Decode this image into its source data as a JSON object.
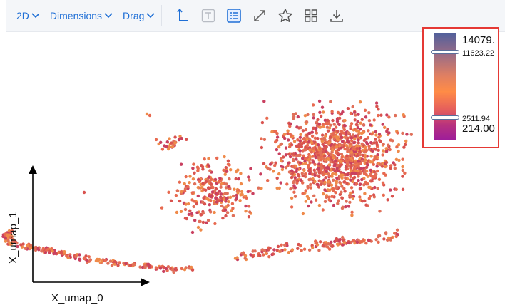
{
  "toolbar": {
    "view_mode": "2D",
    "dimensions_label": "Dimensions",
    "drag_label": "Drag",
    "accent": "#1f6fd6",
    "icons": [
      "axes-icon",
      "text-icon",
      "legend-list-icon",
      "expand-icon",
      "star-icon",
      "grid-icon",
      "download-icon"
    ]
  },
  "legend": {
    "max": "14079.",
    "upper_handle": "11623.22",
    "lower_handle": "2511.94",
    "min": "214.00",
    "colors": [
      "#51609c",
      "#ff8c46",
      "#9e1e9a"
    ],
    "highlight_border": "#e53935"
  },
  "axes": {
    "x_label": "X_umap_0",
    "y_label": "X_umap_1"
  },
  "chart_data": {
    "type": "scatter",
    "point_colors": [
      "#e0705a",
      "#d9534f",
      "#ef8a4a",
      "#c94060",
      "#e86a50"
    ]
  }
}
